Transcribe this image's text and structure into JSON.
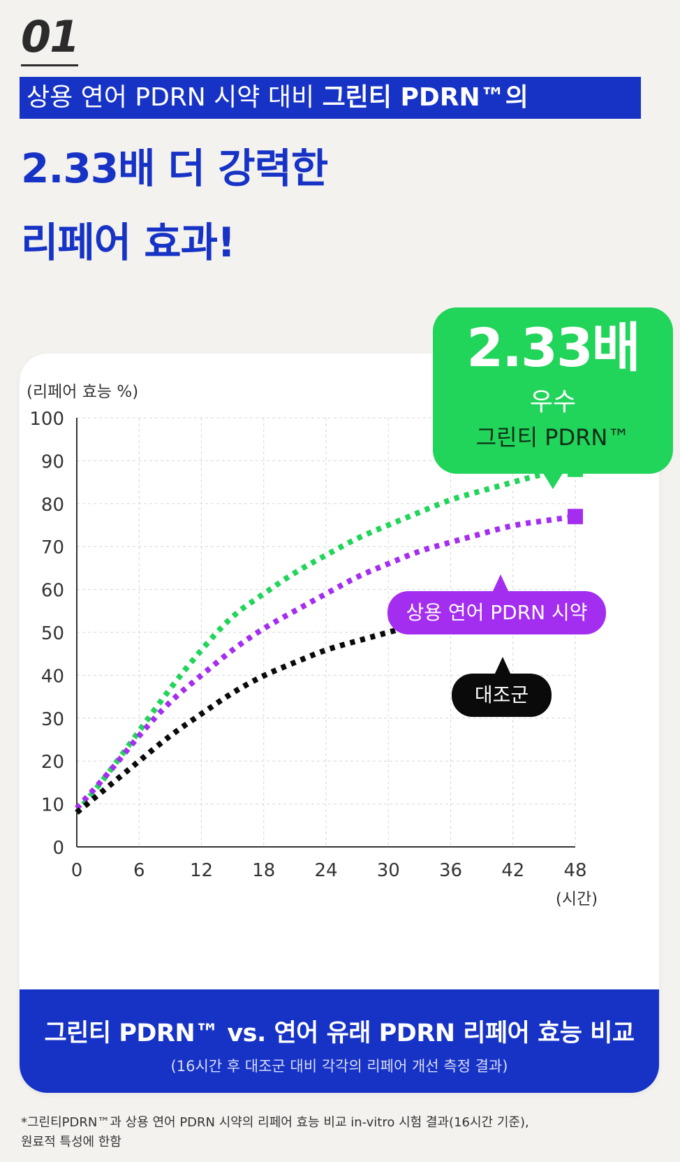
{
  "section_number": "01",
  "banner": {
    "text_regular": "상용 연어 PDRN 시약 대비 ",
    "text_bold": "그린티 PDRN™의"
  },
  "headline": {
    "line1": "2.33배 더 강력한",
    "line2": "리페어 효과!"
  },
  "callout": {
    "big": "2.33배",
    "mid": "우수",
    "small": "그린티 PDRN™"
  },
  "labels": {
    "purple_series": "상용 연어 PDRN 시약",
    "black_series": "대조군"
  },
  "card_footer": {
    "title": "그린티 PDRN™ vs. 연어 유래 PDRN 리페어 효능 비교",
    "subtitle": "(16시간 후 대조군 대비 각각의 리페어 개선 측정 결과)"
  },
  "footnote": {
    "line1": "*그린티PDRN™과 상용 연어 PDRN 시약의 리페어 효능 비교 in-vitro 시험 결과(16시간 기준),",
    "line2": "원료적 특성에 한함"
  },
  "colors": {
    "brand_blue": "#1733c6",
    "green": "#21d45a",
    "purple": "#a42ef0",
    "black": "#0a0a0a"
  },
  "chart_data": {
    "type": "line",
    "ylabel": "(리페어 효능 %)",
    "xlabel": "(시간)",
    "x_ticks": [
      "0",
      "6",
      "12",
      "18",
      "24",
      "30",
      "36",
      "42",
      "48"
    ],
    "y_ticks": [
      "0",
      "10",
      "20",
      "30",
      "40",
      "50",
      "60",
      "70",
      "80",
      "90",
      "100"
    ],
    "xlim": [
      0,
      48
    ],
    "ylim": [
      0,
      100
    ],
    "grid": true,
    "series": [
      {
        "name": "그린티 PDRN™",
        "color": "#21d45a",
        "x": [
          0,
          3,
          6,
          9,
          12,
          15,
          18,
          21,
          24,
          27,
          30,
          33,
          36,
          39,
          42,
          45,
          48
        ],
        "y": [
          8,
          17,
          27,
          37,
          46,
          54,
          59,
          64,
          68,
          72,
          75,
          78,
          81,
          83,
          85,
          87,
          88
        ]
      },
      {
        "name": "상용 연어 PDRN 시약",
        "color": "#a42ef0",
        "x": [
          0,
          3,
          6,
          9,
          12,
          15,
          18,
          21,
          24,
          27,
          30,
          33,
          36,
          39,
          42,
          45,
          48
        ],
        "y": [
          9,
          17,
          26,
          34,
          40,
          46,
          51,
          55,
          59,
          63,
          66,
          69,
          71,
          73,
          75,
          76,
          77
        ]
      },
      {
        "name": "대조군",
        "color": "#0a0a0a",
        "x": [
          0,
          3,
          6,
          9,
          12,
          15,
          18,
          21,
          24,
          27,
          30,
          33,
          36,
          39,
          42,
          45,
          48
        ],
        "y": [
          8,
          14,
          20,
          26,
          31,
          36,
          40,
          43,
          46,
          48,
          50,
          52,
          53,
          54,
          55,
          55.5,
          56
        ]
      }
    ]
  }
}
